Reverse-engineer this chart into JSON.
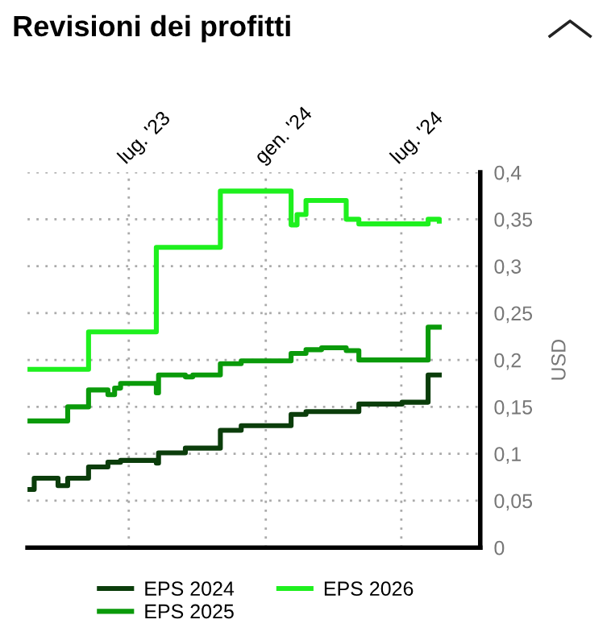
{
  "chart_data": {
    "type": "step",
    "title": "Revisioni dei profitti",
    "ylabel": "USD",
    "series": [
      {
        "name": "EPS 2024",
        "color": "#0b3d0b",
        "x": [
          "2023-02-15",
          "2023-02-24",
          "2023-03-28",
          "2023-04-10",
          "2023-05-08",
          "2023-06-03",
          "2023-06-20",
          "2023-08-07",
          "2023-08-10",
          "2023-09-15",
          "2023-11-01",
          "2023-11-29",
          "2024-02-04",
          "2024-02-24",
          "2024-05-05",
          "2024-07-02",
          "2024-08-06",
          "2024-08-21"
        ],
        "values": [
          0.062,
          0.074,
          0.066,
          0.074,
          0.086,
          0.091,
          0.093,
          0.09,
          0.101,
          0.106,
          0.125,
          0.13,
          0.142,
          0.145,
          0.153,
          0.155,
          0.184,
          0.184
        ]
      },
      {
        "name": "EPS 2025",
        "color": "#0a9a0a",
        "x": [
          "2023-02-15",
          "2023-04-10",
          "2023-05-08",
          "2023-06-03",
          "2023-06-12",
          "2023-06-20",
          "2023-08-07",
          "2023-08-10",
          "2023-09-15",
          "2023-09-25",
          "2023-11-01",
          "2023-11-29",
          "2024-02-04",
          "2024-02-24",
          "2024-03-16",
          "2024-04-18",
          "2024-05-05",
          "2024-08-06",
          "2024-08-21"
        ],
        "values": [
          0.135,
          0.15,
          0.168,
          0.163,
          0.17,
          0.175,
          0.165,
          0.184,
          0.182,
          0.184,
          0.196,
          0.199,
          0.207,
          0.211,
          0.213,
          0.21,
          0.2,
          0.235,
          0.235
        ]
      },
      {
        "name": "EPS 2026",
        "color": "#1ef01e",
        "x": [
          "2023-02-15",
          "2023-05-08",
          "2023-08-07",
          "2023-11-01",
          "2024-02-04",
          "2024-02-12",
          "2024-02-24",
          "2024-04-18",
          "2024-05-05",
          "2024-08-06",
          "2024-08-21"
        ],
        "values": [
          0.19,
          0.23,
          0.32,
          0.38,
          0.344,
          0.355,
          0.37,
          0.35,
          0.345,
          0.35,
          0.348
        ]
      }
    ],
    "xlim": [
      "2023-02-15",
      "2024-10-15"
    ],
    "xticks": [
      {
        "value": "2023-07-01",
        "label": "lug. '23"
      },
      {
        "value": "2024-01-01",
        "label": "gen. '24"
      },
      {
        "value": "2024-07-01",
        "label": "lug. '24"
      }
    ],
    "ylim": [
      0,
      0.4
    ],
    "yticks": [
      0,
      {
        "value": 0.05,
        "label": "0,05"
      },
      {
        "value": 0.1,
        "label": "0,1"
      },
      {
        "value": 0.15,
        "label": "0,15"
      },
      {
        "value": 0.2,
        "label": "0,2"
      },
      {
        "value": 0.25,
        "label": "0,25"
      },
      {
        "value": 0.3,
        "label": "0,3"
      },
      {
        "value": 0.35,
        "label": "0,35"
      },
      {
        "value": 0.4,
        "label": "0,4"
      }
    ],
    "grid": true,
    "legend": "bottom",
    "marker": "none",
    "line_style": "solid"
  }
}
